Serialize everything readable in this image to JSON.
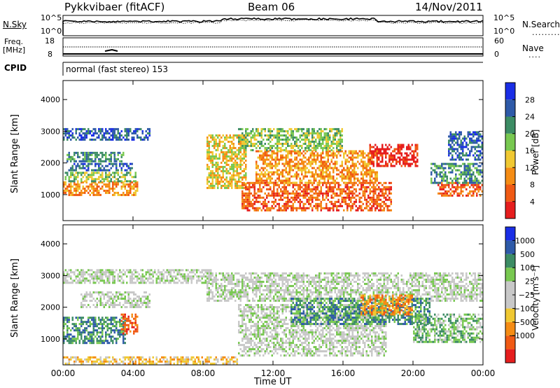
{
  "header": {
    "radar": "Pykkvibaer (fitACF)",
    "beam": "Beam 06",
    "date": "14/Nov/2011"
  },
  "top_strips": {
    "nsky_label": "N.Sky",
    "nsky_ticks": [
      "10^5",
      "10^0"
    ],
    "nsearch_ticks": [
      "10^5",
      "10^0"
    ],
    "nsearch_label": "N.Search",
    "freq_label": "Freq.",
    "freq_unit": "[MHz]",
    "freq_ticks": [
      "18",
      "8"
    ],
    "nave_ticks": [
      "60",
      "0"
    ],
    "nave_label": "Nave",
    "cpid_label": "CPID",
    "cpid_value": "normal (fast stereo) 153"
  },
  "chart_data": [
    {
      "type": "heatmap",
      "name": "power",
      "ylabel": "Slant Range [km]",
      "yticks": [
        1000,
        2000,
        3000,
        4000
      ],
      "ylim": [
        180,
        4600
      ],
      "xlim_hours": [
        0,
        24
      ],
      "xticks": [
        "00:00",
        "04:00",
        "08:00",
        "12:00",
        "16:00",
        "20:00",
        "00:00"
      ],
      "colorbar_label": "Power [dB]",
      "colorbar_ticks": [
        "4",
        "8",
        "12",
        "16",
        "20",
        "24",
        "28"
      ],
      "colors": [
        "#1a2ee6",
        "#2e5aa8",
        "#3c8c64",
        "#78c850",
        "#f0c832",
        "#f58c14",
        "#f05a14",
        "#e61e1e"
      ],
      "regions": [
        {
          "t": [
            0.0,
            4.3
          ],
          "r": [
            1020,
            1420
          ],
          "level": 5
        },
        {
          "t": [
            0.1,
            4.2
          ],
          "r": [
            1420,
            1720
          ],
          "level": 3
        },
        {
          "t": [
            0.2,
            3.5
          ],
          "r": [
            2050,
            2350
          ],
          "level": 2
        },
        {
          "t": [
            0.0,
            5.0
          ],
          "r": [
            2750,
            3100
          ],
          "level": 1
        },
        {
          "t": [
            0.3,
            4.0
          ],
          "r": [
            1800,
            2000
          ],
          "level": 1
        },
        {
          "t": [
            8.2,
            10.5
          ],
          "r": [
            1200,
            2900
          ],
          "level": 4
        },
        {
          "t": [
            10.2,
            18.8
          ],
          "r": [
            500,
            1400
          ],
          "level": 6
        },
        {
          "t": [
            11.0,
            18.0
          ],
          "r": [
            1400,
            2400
          ],
          "level": 5
        },
        {
          "t": [
            10.0,
            16.0
          ],
          "r": [
            2400,
            3100
          ],
          "level": 3
        },
        {
          "t": [
            17.5,
            20.3
          ],
          "r": [
            1900,
            2600
          ],
          "level": 7
        },
        {
          "t": [
            21.4,
            24.0
          ],
          "r": [
            1000,
            1400
          ],
          "level": 6
        },
        {
          "t": [
            21.0,
            24.0
          ],
          "r": [
            1400,
            2000
          ],
          "level": 2
        },
        {
          "t": [
            22.0,
            24.0
          ],
          "r": [
            2100,
            3000
          ],
          "level": 1
        }
      ]
    },
    {
      "type": "heatmap",
      "name": "velocity",
      "ylabel": "Slant Range [km]",
      "yticks": [
        1000,
        2000,
        3000,
        4000
      ],
      "ylim": [
        180,
        4600
      ],
      "xlim_hours": [
        0,
        24
      ],
      "xticks": [
        "00:00",
        "04:00",
        "08:00",
        "12:00",
        "16:00",
        "20:00",
        "00:00"
      ],
      "xlabel": "Time UT",
      "colorbar_label": "Velocity [m s⁻¹]",
      "colorbar_ticks": [
        "1000",
        "500",
        "100",
        "25",
        "−25",
        "−100",
        "−500",
        "−1000"
      ],
      "colors": [
        "#1a2ee6",
        "#2e5aa8",
        "#3c8c64",
        "#78c850",
        "#c8c8c8",
        "#c8c8c8",
        "#f0c832",
        "#f58c14",
        "#f05a14",
        "#e61e1e"
      ],
      "regions": [
        {
          "t": [
            0.0,
            3.6
          ],
          "r": [
            900,
            1700
          ],
          "level": 2
        },
        {
          "t": [
            3.3,
            4.3
          ],
          "r": [
            1200,
            1800
          ],
          "level": 8
        },
        {
          "t": [
            0.0,
            8.5
          ],
          "r": [
            2800,
            3200
          ],
          "level": 4
        },
        {
          "t": [
            1.0,
            5.0
          ],
          "r": [
            2000,
            2500
          ],
          "level": 4
        },
        {
          "t": [
            8.2,
            24.0
          ],
          "r": [
            2200,
            3100
          ],
          "level": 4
        },
        {
          "t": [
            10.0,
            18.5
          ],
          "r": [
            500,
            2100
          ],
          "level": 4
        },
        {
          "t": [
            13.0,
            21.0
          ],
          "r": [
            1500,
            2300
          ],
          "level": 2
        },
        {
          "t": [
            17.0,
            20.0
          ],
          "r": [
            1800,
            2400
          ],
          "level": 7
        },
        {
          "t": [
            20.0,
            24.0
          ],
          "r": [
            900,
            1800
          ],
          "level": 3
        },
        {
          "t": [
            0.0,
            10.0
          ],
          "r": [
            200,
            450
          ],
          "level": 6
        }
      ]
    }
  ]
}
